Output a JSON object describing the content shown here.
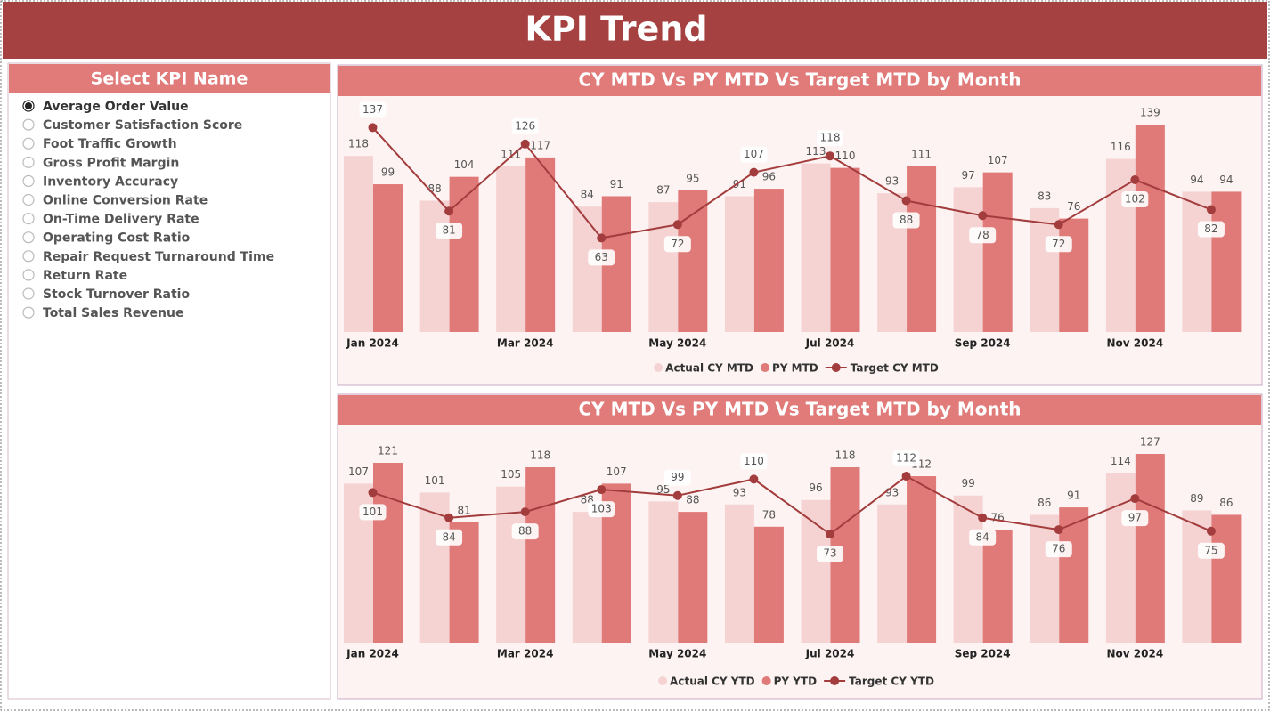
{
  "header": {
    "title": "KPI Trend"
  },
  "slicer": {
    "title": "Select KPI Name",
    "selected": 0,
    "items": [
      "Average Order Value",
      "Customer Satisfaction Score",
      "Foot Traffic Growth",
      "Gross Profit Margin",
      "Inventory Accuracy",
      "Online Conversion Rate",
      "On-Time Delivery Rate",
      "Operating Cost Ratio",
      "Repair Request Turnaround Time",
      "Return Rate",
      "Stock Turnover Ratio",
      "Total Sales Revenue"
    ]
  },
  "chart_data": [
    {
      "type": "bar_line",
      "title": "CY MTD Vs PY MTD Vs Target MTD by Month",
      "categories": [
        "Jan 2024",
        null,
        "Mar 2024",
        null,
        "May 2024",
        null,
        "Jul 2024",
        null,
        "Sep 2024",
        null,
        "Nov 2024",
        null
      ],
      "series": [
        {
          "name": "Actual CY MTD",
          "color": "#f5d3d3",
          "kind": "bar",
          "values": [
            118,
            88,
            111,
            84,
            87,
            91,
            113,
            93,
            97,
            83,
            116,
            94
          ]
        },
        {
          "name": "PY MTD",
          "color": "#e07a78",
          "kind": "bar",
          "values": [
            99,
            104,
            117,
            91,
            95,
            96,
            110,
            111,
            107,
            76,
            139,
            94
          ]
        },
        {
          "name": "Target CY MTD",
          "color": "#a33c3c",
          "kind": "line",
          "values": [
            137,
            81,
            126,
            63,
            72,
            107,
            118,
            88,
            78,
            72,
            102,
            82
          ]
        }
      ]
    },
    {
      "type": "bar_line",
      "title": "CY MTD Vs PY MTD Vs Target MTD by Month",
      "categories": [
        "Jan 2024",
        null,
        "Mar 2024",
        null,
        "May 2024",
        null,
        "Jul 2024",
        null,
        "Sep 2024",
        null,
        "Nov 2024",
        null
      ],
      "series": [
        {
          "name": "Actual CY YTD",
          "color": "#f5d3d3",
          "kind": "bar",
          "values": [
            107,
            101,
            105,
            88,
            95,
            93,
            96,
            93,
            99,
            86,
            114,
            89
          ]
        },
        {
          "name": "PY YTD",
          "color": "#e07a78",
          "kind": "bar",
          "values": [
            121,
            81,
            118,
            107,
            88,
            78,
            118,
            112,
            76,
            91,
            127,
            86
          ]
        },
        {
          "name": "Target CY YTD",
          "color": "#a33c3c",
          "kind": "line",
          "values": [
            101,
            84,
            88,
            103,
            99,
            110,
            73,
            112,
            84,
            76,
            97,
            75
          ]
        }
      ]
    }
  ]
}
